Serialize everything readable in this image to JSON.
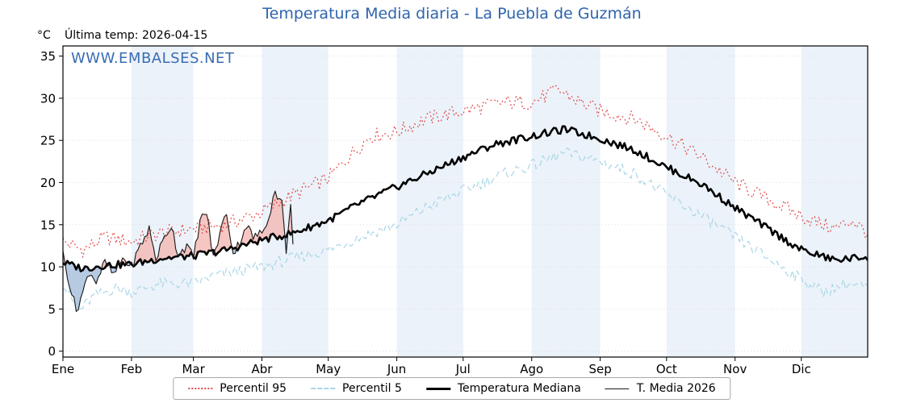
{
  "title": "Temperatura Media diaria - La Puebla de Guzmán",
  "header": {
    "unit_label": "°C",
    "last_temp_label": "Última temp: 2026-04-15"
  },
  "watermark": "WWW.EMBALSES.NET",
  "colors": {
    "title": "#2e64ae",
    "watermark": "#3a6cb5",
    "band": "#ebf2f9",
    "grid": "#d9d9d9",
    "axis": "#000000"
  },
  "legend": {
    "items": [
      {
        "label": "Percentil 95"
      },
      {
        "label": "Percentil 5"
      },
      {
        "label": "Temperatura Mediana"
      },
      {
        "label": "T. Media 2026"
      }
    ]
  },
  "chart_data": {
    "type": "line",
    "title": "Temperatura Media diaria - La Puebla de Guzmán",
    "xlabel": "",
    "ylabel": "°C",
    "ylim": [
      -0.7,
      36.2
    ],
    "y_ticks": [
      0,
      5,
      10,
      15,
      20,
      25,
      30,
      35
    ],
    "x_tick_labels": [
      "Ene",
      "Feb",
      "Mar",
      "Abr",
      "May",
      "Jun",
      "Jul",
      "Ago",
      "Sep",
      "Oct",
      "Nov",
      "Dic"
    ],
    "month_starts": [
      1,
      32,
      60,
      91,
      121,
      152,
      182,
      213,
      244,
      274,
      305,
      335
    ],
    "days_in_year": 365,
    "grid": true,
    "legend_position": "bottom",
    "series": [
      {
        "name": "Percentil 95",
        "color": "#e04b4b",
        "style": "dotted",
        "width": 1.2,
        "noise": 0.9,
        "x": [
          1,
          10,
          20,
          32,
          45,
          60,
          75,
          91,
          105,
          121,
          130,
          140,
          152,
          165,
          182,
          200,
          213,
          225,
          235,
          244,
          260,
          274,
          290,
          305,
          320,
          335,
          350,
          358,
          365
        ],
        "values": [
          13,
          12,
          13.5,
          13,
          14,
          14.5,
          15,
          16.5,
          18.5,
          20.5,
          23,
          25.5,
          26,
          27.5,
          28.5,
          29.5,
          29.5,
          31,
          29.5,
          28.5,
          27.5,
          25.5,
          23,
          20,
          18,
          16,
          14.5,
          15.5,
          14
        ]
      },
      {
        "name": "Percentil 5",
        "color": "#a9d6e8",
        "style": "dashed",
        "width": 1.2,
        "noise": 0.7,
        "x": [
          1,
          8,
          15,
          25,
          32,
          45,
          60,
          70,
          91,
          105,
          121,
          135,
          152,
          165,
          182,
          200,
          213,
          228,
          244,
          260,
          274,
          290,
          305,
          320,
          335,
          345,
          355,
          365
        ],
        "values": [
          8,
          4.7,
          6.5,
          7.5,
          7,
          8,
          8,
          9,
          10,
          11,
          12,
          13.5,
          15,
          17,
          19,
          21,
          22,
          23.5,
          22.5,
          21,
          18.5,
          16,
          13.5,
          11,
          8.5,
          7,
          8,
          7.5
        ]
      },
      {
        "name": "Temperatura Mediana",
        "color": "#000000",
        "style": "solid",
        "width": 2.6,
        "noise": 0.45,
        "x": [
          1,
          10,
          20,
          32,
          45,
          60,
          75,
          91,
          105,
          121,
          135,
          152,
          165,
          182,
          196,
          213,
          228,
          244,
          260,
          274,
          290,
          305,
          320,
          335,
          350,
          365
        ],
        "values": [
          10.5,
          9.8,
          10.2,
          10.3,
          11,
          11.3,
          12,
          13.2,
          14,
          15.5,
          17.5,
          19.5,
          21,
          23,
          24.5,
          25.5,
          26.3,
          25.2,
          23.8,
          21.8,
          19.8,
          17,
          14.5,
          12,
          10.8,
          11.2
        ]
      },
      {
        "name": "T. Media 2026",
        "color": "#1a1a1a",
        "style": "solid",
        "width": 1.1,
        "noise": 0.6,
        "x": [
          1,
          4,
          7,
          10,
          13,
          16,
          20,
          24,
          28,
          32,
          36,
          40,
          43,
          47,
          50,
          53,
          57,
          60,
          63,
          66,
          69,
          72,
          75,
          78,
          81,
          84,
          87,
          91,
          94,
          97,
          100,
          102,
          104,
          105
        ],
        "values": [
          11.5,
          8,
          4.8,
          7,
          9.5,
          8.3,
          10.5,
          9,
          11,
          10,
          12.5,
          14.5,
          11,
          13.5,
          15,
          11.5,
          12.5,
          11,
          15.5,
          16.5,
          11,
          14,
          16.5,
          11.5,
          13,
          15,
          13.5,
          14,
          16,
          19,
          17.5,
          12,
          17,
          13
        ]
      }
    ],
    "fill_between": {
      "series_a": "T. Media 2026",
      "series_b": "Temperatura Mediana",
      "above_fill": "#f3b3ae",
      "above_edge": "#d96a5f",
      "below_fill": "#9db9d8",
      "below_edge": "#5b87b7",
      "opacity": 0.75
    }
  }
}
